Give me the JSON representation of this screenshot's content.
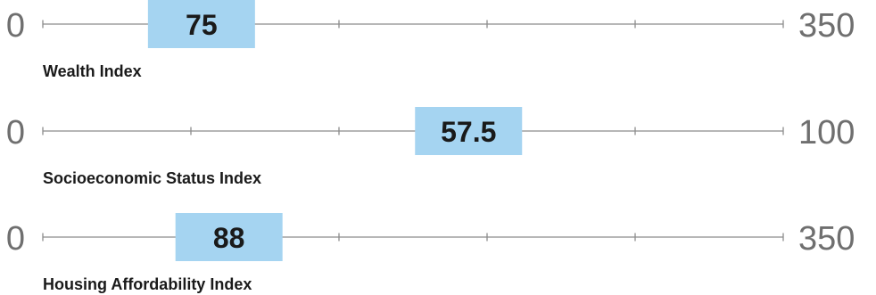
{
  "chart_data": {
    "type": "gauge",
    "grid": false,
    "accent_color": "#a5d4f1",
    "axis_color": "#8c8c8c",
    "rows": [
      {
        "name": "Wealth Index",
        "min": 0,
        "max": 350,
        "min_label": "0",
        "max_label": "350",
        "value": 75,
        "value_label": "75"
      },
      {
        "name": "Socioeconomic Status Index",
        "min": 0,
        "max": 100,
        "min_label": "0",
        "max_label": "100",
        "value": 57.5,
        "value_label": "57.5"
      },
      {
        "name": "Housing Affordability Index",
        "min": 0,
        "max": 350,
        "min_label": "0",
        "max_label": "350",
        "value": 88,
        "value_label": "88"
      }
    ]
  }
}
